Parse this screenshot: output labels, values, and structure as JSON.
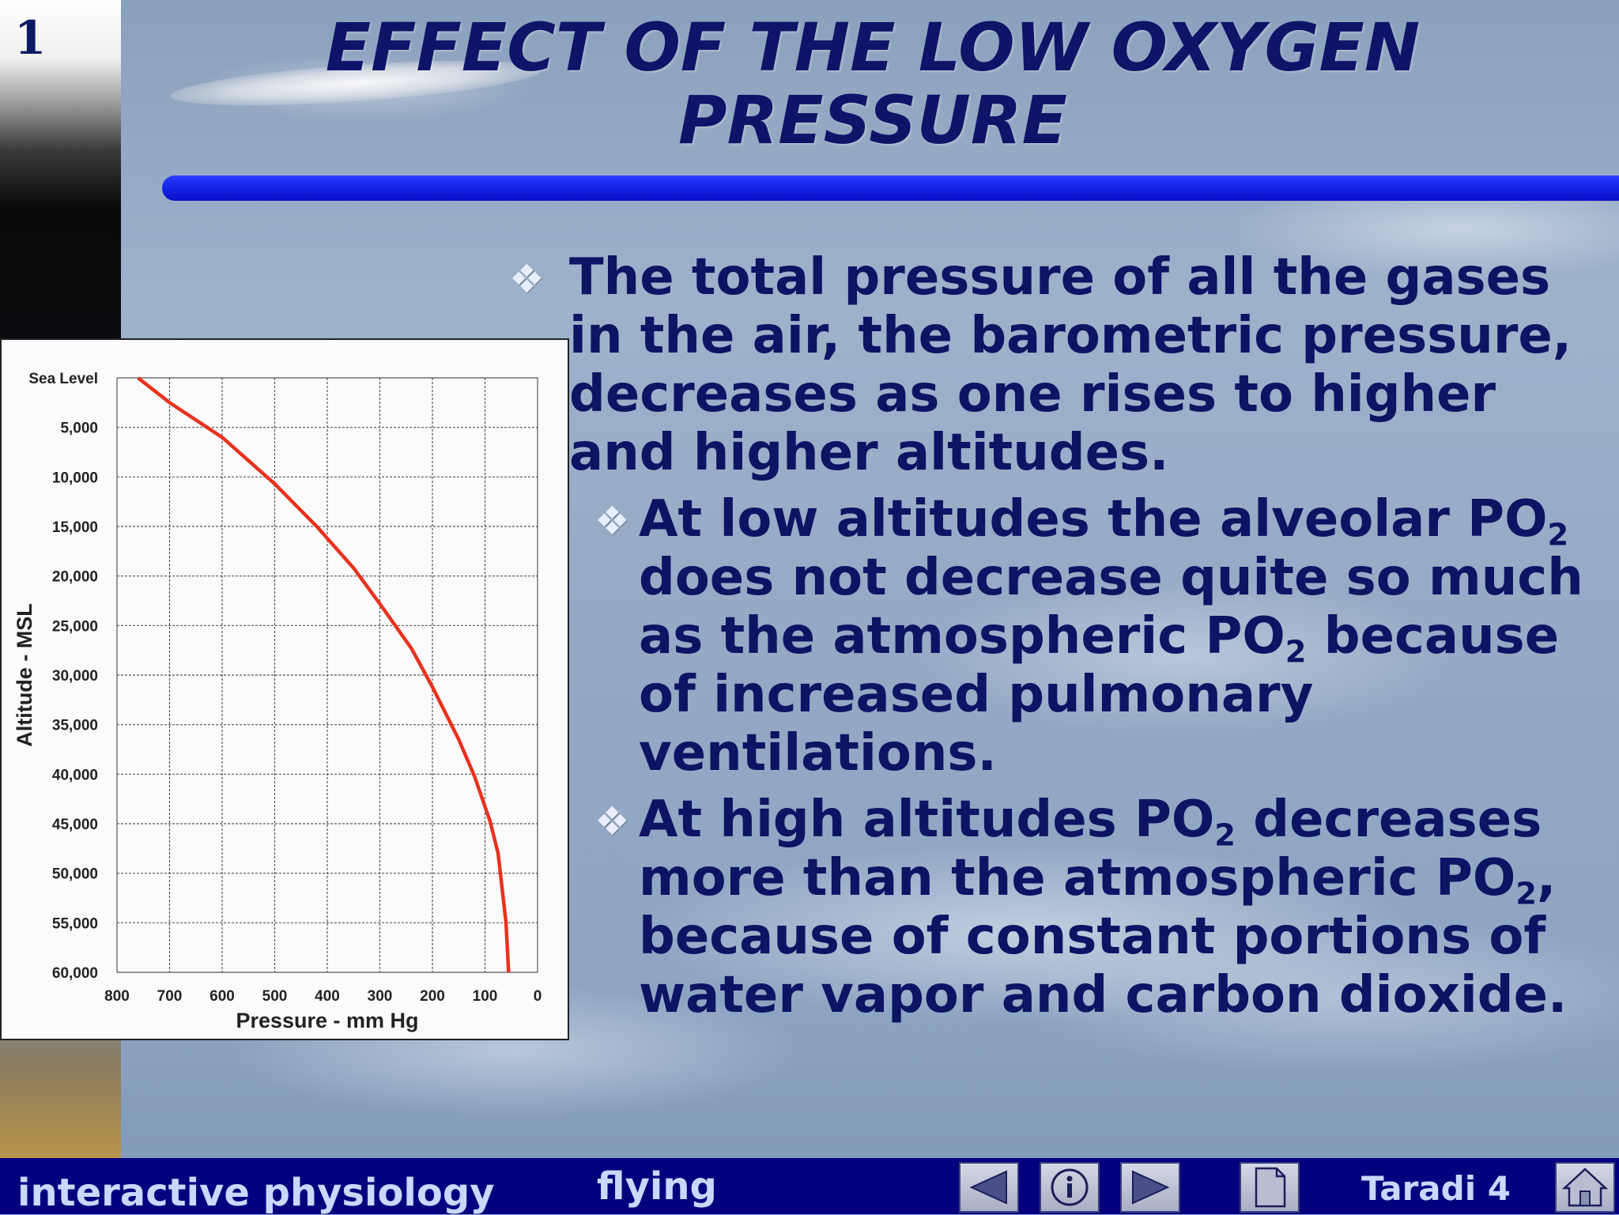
{
  "slide": {
    "number": "1",
    "title_line1": "EFFECT OF THE LOW OXYGEN",
    "title_line2": "PRESSURE"
  },
  "bullets": {
    "main": "The total pressure of all the gases in the air, the barometric pressure, decreases as one rises to higher and higher altitudes.",
    "sub1_a": "At low altitudes the alveolar PO",
    "sub1_b": " does not decrease quite so much as the atmospheric PO",
    "sub1_c": " because of increased pulmonary ventilations.",
    "sub2_a": "At high altitudes PO",
    "sub2_b": " decreases more than the atmospheric PO",
    "sub2_c": ", because of constant portions of water vapor and carbon dioxide.",
    "subscript": "2"
  },
  "footer": {
    "left": "interactive physiology",
    "middle": "flying",
    "right": "Taradi  4"
  },
  "nav": {
    "prev_icon": "triangle-left-icon",
    "info_icon": "info-icon",
    "next_icon": "triangle-right-icon",
    "page_icon": "page-icon",
    "home_icon": "home-icon"
  },
  "colors": {
    "title": "#0e1467",
    "text": "#0c1464",
    "rule": "#1a2cf0",
    "footer": "#05007e",
    "curve": "#e8321e"
  },
  "chart_data": {
    "type": "line",
    "xlabel": "Pressure - mm Hg",
    "ylabel": "Altitude - MSL",
    "x_reversed": true,
    "xlim": [
      800,
      0
    ],
    "x_ticks": [
      "800",
      "700",
      "600",
      "500",
      "400",
      "300",
      "200",
      "100",
      "0"
    ],
    "y_reversed": true,
    "y_tick_labels": [
      "Sea Level",
      "5,000",
      "10,000",
      "15,000",
      "20,000",
      "25,000",
      "30,000",
      "35,000",
      "40,000",
      "45,000",
      "50,000",
      "55,000",
      "60,000"
    ],
    "grid": true,
    "series": [
      {
        "x": [
          760,
          700,
          600,
          500,
          420,
          350,
          300,
          240,
          200,
          150,
          120,
          90,
          75,
          60,
          55
        ],
        "y": [
          0,
          2500,
          6000,
          10700,
          15000,
          19200,
          22800,
          27300,
          31200,
          36500,
          40200,
          44800,
          48000,
          55000,
          60000
        ]
      }
    ]
  }
}
